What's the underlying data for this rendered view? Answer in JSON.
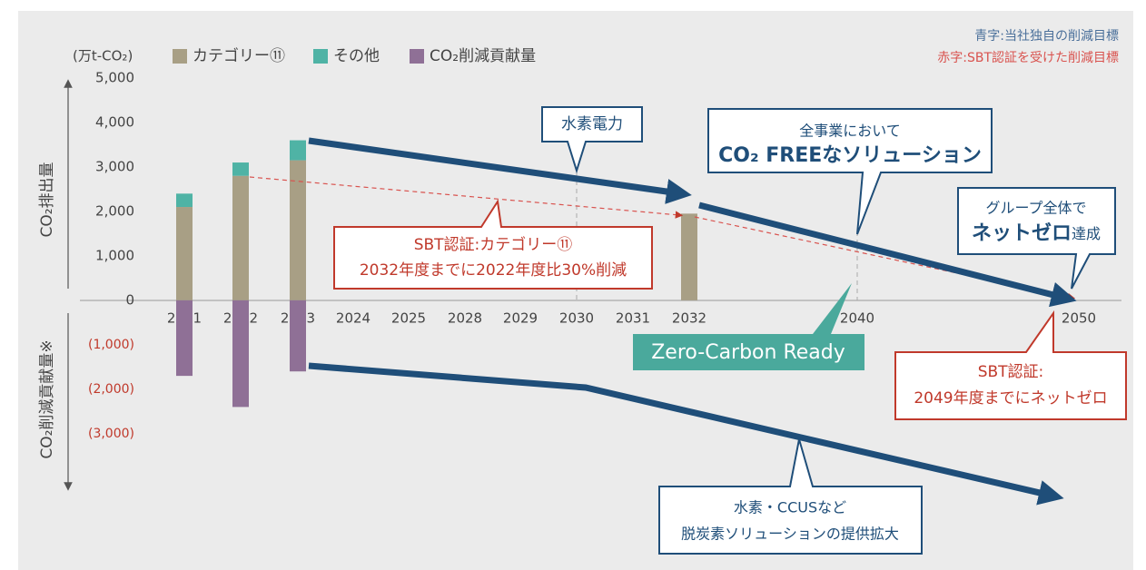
{
  "chart_data": {
    "type": "bar",
    "stacked": true,
    "unit": "(万t-CO₂)",
    "ylabel": "CO₂排出量",
    "ylabel_lower": "CO₂削減貢献量※",
    "categories": [
      "2021",
      "2022",
      "2023",
      "2024",
      "2025",
      "2028",
      "2029",
      "2030",
      "2031",
      "2032",
      "2040",
      "2050"
    ],
    "series": [
      {
        "name": "カテゴリー⑪",
        "color": "#a89f85",
        "values": [
          2100,
          2800,
          3150,
          null,
          null,
          null,
          null,
          null,
          null,
          1950,
          null,
          null
        ]
      },
      {
        "name": "その他",
        "color": "#4fb3a5",
        "values": [
          300,
          300,
          450,
          null,
          null,
          null,
          null,
          null,
          null,
          null,
          null,
          null
        ]
      },
      {
        "name": "CO₂削減貢献量",
        "color": "#8f7096",
        "values": [
          -1700,
          -2400,
          -1600,
          null,
          null,
          null,
          null,
          null,
          null,
          null,
          null,
          null
        ]
      }
    ],
    "ylim": [
      -4250,
      5000
    ],
    "yticks": [
      {
        "value": -3000,
        "label": "(3,000)"
      },
      {
        "value": -2000,
        "label": "(2,000)"
      },
      {
        "value": -1000,
        "label": "(1,000)"
      },
      0,
      {
        "value": 1000,
        "label": "1,000"
      },
      {
        "value": 2000,
        "label": "2,000"
      },
      {
        "value": 3000,
        "label": "3,000"
      },
      {
        "value": 4000,
        "label": "4,000"
      },
      {
        "value": 5000,
        "label": "5,000"
      }
    ],
    "negative_tick_color": "#c0392b",
    "notes": [
      "青字:当社独自の削減目標",
      "赤字:SBT認証を受けた削減目標"
    ],
    "annotations": [
      [
        "水素電力"
      ],
      [
        "全事業において",
        "CO₂ FREEなソリューション"
      ],
      [
        "グループ全体で",
        "ネットゼロ",
        "達成"
      ],
      [
        "SBT認証:カテゴリー⑪",
        "2032年度までに2022年度比30%削減"
      ],
      [
        "Zero-Carbon Ready"
      ],
      [
        "SBT認証:",
        "2049年度までにネットゼロ"
      ],
      [
        "水素・CCUSなど",
        "脱炭素ソリューションの提供拡大"
      ]
    ]
  }
}
